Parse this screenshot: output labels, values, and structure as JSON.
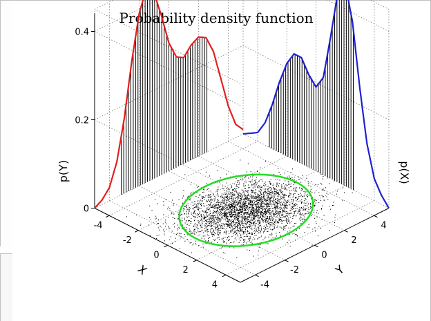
{
  "title": "Probability density function",
  "chart_data": {
    "type": "scatter",
    "title": "Probability density function",
    "xlabel": "X",
    "ylabel": "Y",
    "zlabel_left": "p(Y)",
    "zlabel_right": "p(X)",
    "x_ticks": [
      -4,
      -2,
      0,
      2,
      4
    ],
    "y_ticks": [
      -4,
      -2,
      0,
      2,
      4
    ],
    "z_ticks": [
      "0",
      "0.2",
      "0.4"
    ],
    "xlim": [
      -5,
      5
    ],
    "ylim": [
      -5,
      5
    ],
    "zlim": [
      0,
      0.45
    ],
    "grid": true,
    "series": [
      {
        "kind": "marginal-pdf-curve",
        "axis": "Y",
        "color": "#e02020",
        "y": [
          -5,
          -4.5,
          -4,
          -3.5,
          -3,
          -2.5,
          -2,
          -1.5,
          -1,
          -0.5,
          0,
          0.5,
          1,
          1.5,
          2,
          2.5,
          3,
          3.5,
          4,
          4.5,
          5
        ],
        "density": [
          0.0,
          0.01,
          0.03,
          0.08,
          0.17,
          0.29,
          0.39,
          0.44,
          0.42,
          0.36,
          0.29,
          0.25,
          0.24,
          0.26,
          0.27,
          0.26,
          0.22,
          0.15,
          0.08,
          0.03,
          0.01
        ]
      },
      {
        "kind": "marginal-pdf-curve",
        "axis": "X",
        "color": "#2020d0",
        "x": [
          -5,
          -4.5,
          -4,
          -3.5,
          -3,
          -2.5,
          -2,
          -1.5,
          -1,
          -0.5,
          0,
          0.5,
          1,
          1.5,
          2,
          2.5,
          3,
          3.5,
          4,
          4.5,
          5
        ],
        "density": [
          0.0,
          0.01,
          0.02,
          0.05,
          0.1,
          0.16,
          0.21,
          0.24,
          0.24,
          0.21,
          0.19,
          0.22,
          0.32,
          0.43,
          0.46,
          0.38,
          0.24,
          0.12,
          0.05,
          0.02,
          0.0
        ]
      },
      {
        "kind": "scatter-samples",
        "color": "#000000",
        "center": [
          0.3,
          0.0
        ],
        "spread": [
          1.3,
          1.7
        ],
        "correlation": 0.15
      },
      {
        "kind": "ellipse",
        "color": "#22dd22",
        "center": [
          0.3,
          0.0
        ],
        "radii": [
          3.0,
          3.6
        ],
        "rotation_deg": 10
      }
    ]
  }
}
